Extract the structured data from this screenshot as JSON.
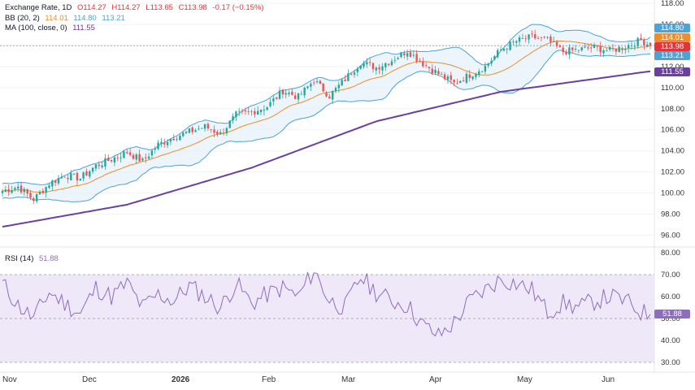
{
  "legend": {
    "symbol": "Exchange Rate, 1D",
    "open": "O114.27",
    "high": "H114.27",
    "low": "L113.65",
    "close": "C113.98",
    "change": "-0.17 (−0.15%)",
    "bb_label": "BB (20, 2)",
    "bb_basis": "114.01",
    "bb_upper": "114.80",
    "bb_lower": "113.21",
    "ma_label": "MA (100, close, 0)",
    "ma_value": "111.55",
    "rsi_label": "RSI (14)",
    "rsi_value": "51.88"
  },
  "price_tags": {
    "upper": "114.80",
    "basis": "114.01",
    "close": "113.98",
    "lower": "113.21",
    "ma": "111.55",
    "rsi": "51.88"
  },
  "colors": {
    "up": "#26a69a",
    "down": "#ef5350",
    "bb_band": "#4aa3d9",
    "bb_basis": "#f08c2a",
    "ma": "#6a3fa0",
    "rsi_line": "#8e6cc0",
    "rsi_fill": "#efe8f8"
  },
  "chart_data": [
    {
      "type": "candlestick",
      "title": "Exchange Rate, 1D",
      "ylim": [
        95.5,
        118
      ],
      "yticks": [
        96,
        98,
        100,
        102,
        104,
        106,
        108,
        110,
        112,
        114,
        116,
        118
      ],
      "ytick_labels": [
        "96.00",
        "98.00",
        "100.00",
        "102.00",
        "104.00",
        "106.00",
        "108.00",
        "110.00",
        "112.00",
        "114.00",
        "116.00",
        "118.00"
      ],
      "x_labels": [
        "Nov",
        "Dec",
        "2026",
        "Feb",
        "Mar",
        "Apr",
        "May",
        "Jun"
      ],
      "series": [
        {
          "name": "Exchange Rate",
          "type": "candles",
          "anchors_close": [
            [
              0,
              100.2
            ],
            [
              5,
              100.6
            ],
            [
              10,
              99.4
            ],
            [
              15,
              100.9
            ],
            [
              20,
              101.7
            ],
            [
              25,
              101.4
            ],
            [
              30,
              102.6
            ],
            [
              35,
              103.2
            ],
            [
              40,
              103.9
            ],
            [
              45,
              103.0
            ],
            [
              50,
              104.6
            ],
            [
              55,
              105.3
            ],
            [
              60,
              105.8
            ],
            [
              65,
              106.3
            ],
            [
              70,
              105.6
            ],
            [
              75,
              107.4
            ],
            [
              80,
              107.7
            ],
            [
              85,
              108.2
            ],
            [
              90,
              109.7
            ],
            [
              95,
              109.1
            ],
            [
              100,
              110.7
            ],
            [
              105,
              109.2
            ],
            [
              110,
              110.8
            ],
            [
              115,
              112.4
            ],
            [
              120,
              111.9
            ],
            [
              125,
              112.6
            ],
            [
              130,
              113.5
            ],
            [
              135,
              112.3
            ],
            [
              140,
              111.3
            ],
            [
              145,
              110.4
            ],
            [
              150,
              111.2
            ],
            [
              155,
              112.0
            ],
            [
              160,
              113.6
            ],
            [
              165,
              114.4
            ],
            [
              170,
              114.8
            ],
            [
              175,
              114.5
            ],
            [
              180,
              113.4
            ],
            [
              185,
              113.6
            ],
            [
              190,
              113.8
            ],
            [
              195,
              113.5
            ],
            [
              200,
              113.9
            ],
            [
              205,
              114.5
            ],
            [
              208,
              114.0
            ]
          ]
        },
        {
          "name": "BB Upper",
          "values_hint": "upper band"
        },
        {
          "name": "BB Basis",
          "values_hint": "20-period basis"
        },
        {
          "name": "BB Lower",
          "values_hint": "lower band"
        },
        {
          "name": "MA (100)",
          "anchors": [
            [
              0,
              96.8
            ],
            [
              40,
              98.9
            ],
            [
              80,
              102.4
            ],
            [
              120,
              106.8
            ],
            [
              160,
              109.6
            ],
            [
              208,
              111.55
            ]
          ]
        }
      ],
      "last": {
        "open": 114.27,
        "high": 114.27,
        "low": 113.65,
        "close": 113.98,
        "bb_upper": 114.8,
        "bb_basis": 114.01,
        "bb_lower": 113.21,
        "ma": 111.55
      }
    },
    {
      "type": "line",
      "title": "RSI (14)",
      "ylim": [
        30,
        80
      ],
      "yticks": [
        30,
        40,
        50,
        60,
        70,
        80
      ],
      "ytick_labels": [
        "30.00",
        "40.00",
        "50.00",
        "60.00",
        "70.00",
        "80.00"
      ],
      "bands": {
        "upper": 70,
        "middle": 50,
        "lower": 30
      },
      "series": [
        {
          "name": "RSI (14)",
          "anchors": [
            [
              0,
              66
            ],
            [
              5,
              56
            ],
            [
              10,
              50
            ],
            [
              15,
              62
            ],
            [
              20,
              57
            ],
            [
              25,
              52
            ],
            [
              30,
              64
            ],
            [
              35,
              60
            ],
            [
              40,
              66
            ],
            [
              45,
              55
            ],
            [
              50,
              61
            ],
            [
              55,
              58
            ],
            [
              60,
              65
            ],
            [
              65,
              60
            ],
            [
              70,
              55
            ],
            [
              75,
              66
            ],
            [
              80,
              57
            ],
            [
              85,
              61
            ],
            [
              90,
              64
            ],
            [
              95,
              60
            ],
            [
              100,
              72
            ],
            [
              105,
              58
            ],
            [
              110,
              55
            ],
            [
              115,
              69
            ],
            [
              120,
              62
            ],
            [
              125,
              58
            ],
            [
              130,
              56
            ],
            [
              135,
              47
            ],
            [
              140,
              42
            ],
            [
              145,
              48
            ],
            [
              150,
              58
            ],
            [
              155,
              63
            ],
            [
              160,
              68
            ],
            [
              165,
              66
            ],
            [
              170,
              63
            ],
            [
              175,
              53
            ],
            [
              180,
              57
            ],
            [
              185,
              55
            ],
            [
              190,
              58
            ],
            [
              195,
              60
            ],
            [
              200,
              58
            ],
            [
              205,
              53
            ],
            [
              208,
              51.88
            ]
          ]
        }
      ],
      "last": 51.88
    }
  ]
}
